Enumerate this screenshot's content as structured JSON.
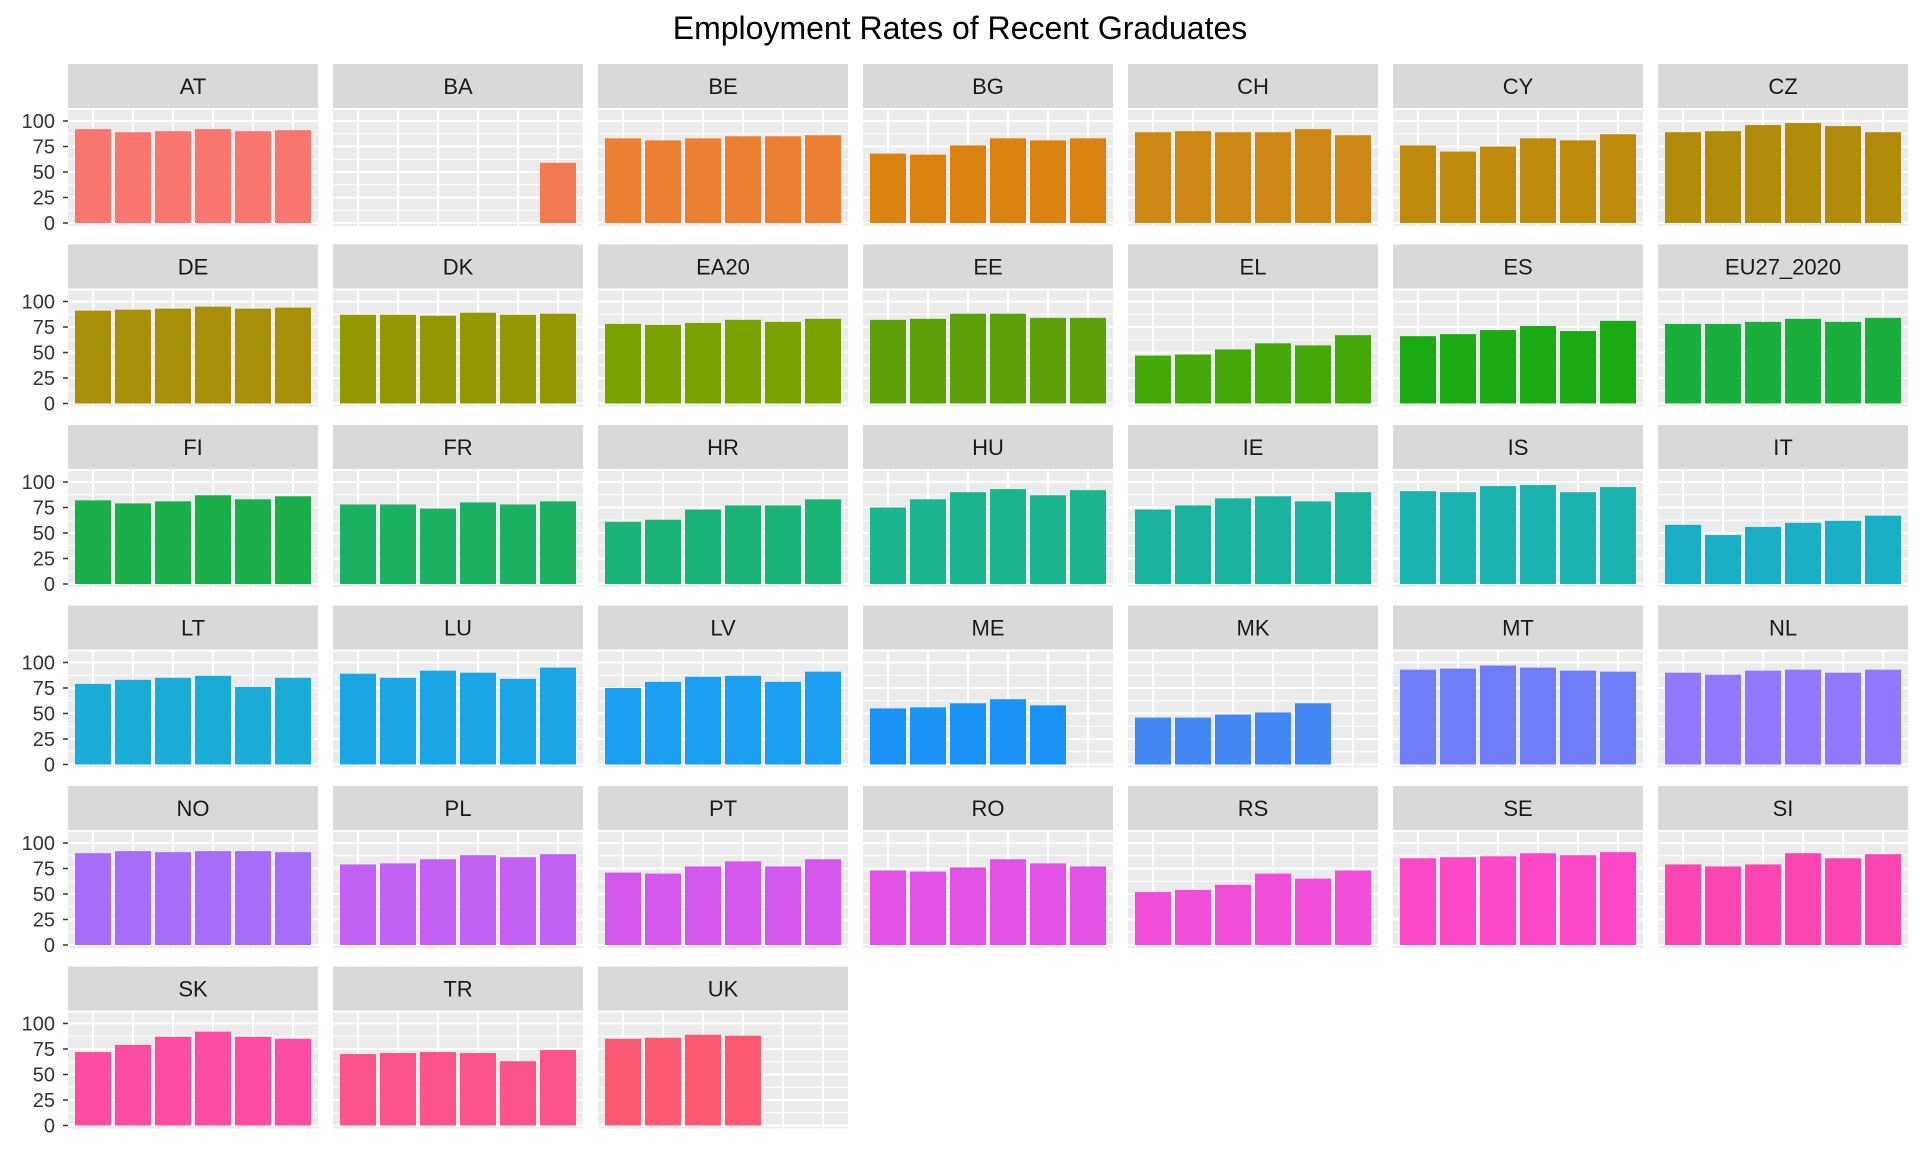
{
  "chart_data": {
    "type": "bar",
    "title": "Employment Rates of Recent Graduates",
    "xlabel": "",
    "ylabel": "",
    "ylim": [
      0,
      100
    ],
    "yticks": [
      "0",
      "25",
      "50",
      "75",
      "100"
    ],
    "n_slots": 6,
    "grid": true,
    "facets": [
      {
        "name": "AT",
        "color": "#F8766D",
        "values": [
          92,
          89,
          90,
          92,
          90,
          91
        ]
      },
      {
        "name": "BA",
        "color": "#F27A53",
        "values": [
          null,
          null,
          null,
          null,
          null,
          59
        ]
      },
      {
        "name": "BE",
        "color": "#EB7F32",
        "values": [
          83,
          81,
          83,
          85,
          85,
          86
        ]
      },
      {
        "name": "BG",
        "color": "#D9820F",
        "values": [
          68,
          67,
          76,
          83,
          81,
          83
        ]
      },
      {
        "name": "CH",
        "color": "#CC8714",
        "values": [
          89,
          90,
          89,
          89,
          92,
          86
        ]
      },
      {
        "name": "CY",
        "color": "#BE8A0B",
        "values": [
          76,
          70,
          75,
          83,
          81,
          87
        ]
      },
      {
        "name": "CZ",
        "color": "#B08C0A",
        "values": [
          89,
          90,
          96,
          98,
          95,
          89
        ]
      },
      {
        "name": "DE",
        "color": "#A78F0A",
        "values": [
          91,
          92,
          93,
          95,
          93,
          94
        ]
      },
      {
        "name": "DK",
        "color": "#939800",
        "values": [
          87,
          87,
          86,
          89,
          87,
          88
        ]
      },
      {
        "name": "EA20",
        "color": "#7AA100",
        "values": [
          78,
          77,
          79,
          82,
          80,
          83
        ]
      },
      {
        "name": "EE",
        "color": "#5CA10A",
        "values": [
          82,
          83,
          88,
          88,
          84,
          84
        ]
      },
      {
        "name": "EL",
        "color": "#43A808",
        "values": [
          47,
          48,
          53,
          59,
          57,
          67
        ]
      },
      {
        "name": "ES",
        "color": "#1AAA14",
        "values": [
          66,
          68,
          72,
          76,
          71,
          81
        ]
      },
      {
        "name": "EU27_2020",
        "color": "#1AAF3C",
        "values": [
          78,
          78,
          80,
          83,
          80,
          84
        ]
      },
      {
        "name": "FI",
        "color": "#1AAE4A",
        "values": [
          82,
          79,
          81,
          87,
          83,
          86
        ]
      },
      {
        "name": "FR",
        "color": "#1AB262",
        "values": [
          78,
          78,
          74,
          80,
          78,
          81
        ]
      },
      {
        "name": "HR",
        "color": "#1AB576",
        "values": [
          61,
          63,
          73,
          77,
          77,
          83
        ]
      },
      {
        "name": "HU",
        "color": "#1AB58E",
        "values": [
          75,
          83,
          90,
          93,
          87,
          92
        ]
      },
      {
        "name": "IE",
        "color": "#1AB49E",
        "values": [
          73,
          77,
          84,
          86,
          81,
          90
        ]
      },
      {
        "name": "IS",
        "color": "#1AB3AE",
        "values": [
          91,
          90,
          96,
          97,
          90,
          95
        ]
      },
      {
        "name": "IT",
        "color": "#1AAFC4",
        "values": [
          58,
          48,
          56,
          60,
          62,
          67
        ]
      },
      {
        "name": "LT",
        "color": "#1AABD6",
        "values": [
          79,
          83,
          85,
          87,
          76,
          85
        ]
      },
      {
        "name": "LU",
        "color": "#1AA6E4",
        "values": [
          89,
          85,
          92,
          90,
          84,
          95
        ]
      },
      {
        "name": "LV",
        "color": "#1A9FF1",
        "values": [
          75,
          81,
          86,
          87,
          81,
          91
        ]
      },
      {
        "name": "ME",
        "color": "#1A93F6",
        "values": [
          55,
          56,
          60,
          64,
          58,
          null
        ]
      },
      {
        "name": "MK",
        "color": "#4387F2",
        "values": [
          46,
          46,
          49,
          51,
          60,
          null
        ]
      },
      {
        "name": "MT",
        "color": "#707DF9",
        "values": [
          93,
          94,
          97,
          95,
          92,
          91
        ]
      },
      {
        "name": "NL",
        "color": "#9178FB",
        "values": [
          90,
          88,
          92,
          93,
          90,
          93
        ]
      },
      {
        "name": "NO",
        "color": "#A56DF8",
        "values": [
          90,
          92,
          91,
          92,
          92,
          91
        ]
      },
      {
        "name": "PL",
        "color": "#C160F2",
        "values": [
          79,
          80,
          84,
          88,
          86,
          89
        ]
      },
      {
        "name": "PT",
        "color": "#D357EC",
        "values": [
          71,
          70,
          77,
          82,
          77,
          84
        ]
      },
      {
        "name": "RO",
        "color": "#E152E4",
        "values": [
          73,
          72,
          76,
          84,
          80,
          77
        ]
      },
      {
        "name": "RS",
        "color": "#F04DD8",
        "values": [
          52,
          54,
          59,
          70,
          65,
          73
        ]
      },
      {
        "name": "SE",
        "color": "#FA48C6",
        "values": [
          85,
          86,
          87,
          90,
          88,
          91
        ]
      },
      {
        "name": "SI",
        "color": "#FA45B2",
        "values": [
          79,
          77,
          79,
          90,
          85,
          89
        ]
      },
      {
        "name": "SK",
        "color": "#FA4DA0",
        "values": [
          72,
          79,
          87,
          92,
          87,
          85
        ]
      },
      {
        "name": "TR",
        "color": "#FA528A",
        "values": [
          70,
          71,
          72,
          71,
          63,
          74
        ]
      },
      {
        "name": "UK",
        "color": "#FA5974",
        "values": [
          85,
          86,
          89,
          88,
          null,
          null
        ]
      }
    ]
  }
}
